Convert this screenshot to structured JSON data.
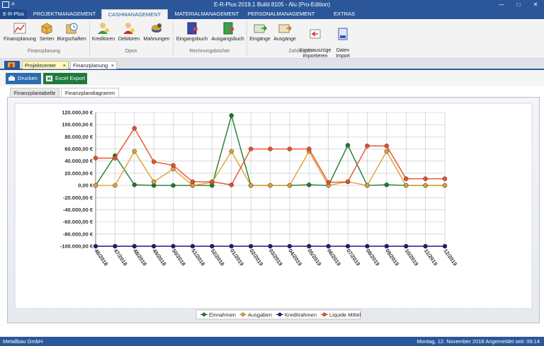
{
  "window": {
    "title": "E-R-Plus 2019.1 Build 8105 -  Alu (Pro-Edition)",
    "quick_access": "≡"
  },
  "ribbon_tabs": [
    {
      "label": "E-R-Plus"
    },
    {
      "label": "PROJEKTMANAGEMENT"
    },
    {
      "label": "CASHMANAGEMENT"
    },
    {
      "label": "MATERIALMANAGEMENT"
    },
    {
      "label": "PERSONALMANAGEMENT"
    },
    {
      "label": "EXTRAS"
    }
  ],
  "ribbon": {
    "buttons": [
      {
        "label": "Finanzplanung",
        "icon": "chart-line-icon"
      },
      {
        "label": "Serien",
        "icon": "box-icon"
      },
      {
        "label": "Bürgschaften",
        "icon": "clock-icon"
      },
      {
        "label": "Kreditoren",
        "icon": "person-icon"
      },
      {
        "label": "Debitoren",
        "icon": "person-red-icon"
      },
      {
        "label": "Mahnungen",
        "icon": "coins-icon"
      },
      {
        "label": "Eingangsbuch",
        "icon": "book-blue-icon"
      },
      {
        "label": "Ausgangsbuch",
        "icon": "book-green-icon"
      },
      {
        "label": "Eingänge",
        "icon": "money-in-icon"
      },
      {
        "label": "Ausgänge",
        "icon": "money-out-icon"
      },
      {
        "label": "Kontoauszüge\nimportieren",
        "icon": "import-icon"
      },
      {
        "label": "Datev\nImport",
        "icon": "datev-icon"
      }
    ],
    "groups": [
      {
        "label": "Finanzplanung"
      },
      {
        "label": "Opos"
      },
      {
        "label": "Rechnungsbücher"
      },
      {
        "label": "Zahlungen"
      }
    ]
  },
  "doc_tabs": [
    {
      "label": "Projektcenter",
      "close": "×"
    },
    {
      "label": "Finanzplanung",
      "close": "×"
    }
  ],
  "toolbar": {
    "print_label": "Drucken",
    "excel_label": "Excel Export",
    "colors": {
      "print": "#2b6cb0",
      "excel": "#1e7b3c"
    }
  },
  "sub_tabs": [
    {
      "label": "Finanzplantabelle"
    },
    {
      "label": "Finanzplandiagramm"
    }
  ],
  "chart_data": {
    "type": "line",
    "categories": [
      "46/2018",
      "47/2018",
      "48/2018",
      "49/2018",
      "50/2018",
      "51/2018",
      "52/2018",
      "01/2019",
      "02/2019",
      "03/2019",
      "04/2019",
      "05/2019",
      "06/2019",
      "07/2019",
      "08/2019",
      "09/2019",
      "10/2019",
      "11/2019",
      "12/2019"
    ],
    "ylim": [
      -100000,
      120000
    ],
    "yticks": [
      "120.000,00 €",
      "100.000,00 €",
      "80.000,00 €",
      "60.000,00 €",
      "40.000,00 €",
      "20.000,00 €",
      "0,00 €",
      "-20.000,00 €",
      "-40.000,00 €",
      "-60.000,00 €",
      "-80.000,00 €",
      "-100.000,00 €"
    ],
    "ytick_values": [
      120000,
      100000,
      80000,
      60000,
      40000,
      20000,
      0,
      -20000,
      -40000,
      -60000,
      -80000,
      -100000
    ],
    "grid": true,
    "legend_position": "bottom",
    "series": [
      {
        "name": "Einnahmen",
        "color": "#1e7b2e",
        "values": [
          0,
          49000,
          1000,
          0,
          0,
          0,
          0,
          115000,
          0,
          0,
          0,
          1000,
          0,
          66000,
          0,
          1000,
          0,
          0,
          0
        ]
      },
      {
        "name": "Ausgaben",
        "color": "#e0a030",
        "values": [
          0,
          0,
          56000,
          6000,
          27000,
          0,
          5000,
          56000,
          0,
          0,
          0,
          56000,
          0,
          6000,
          0,
          56000,
          0,
          0,
          0
        ]
      },
      {
        "name": "Kreditrahmen",
        "color": "#1c1c7c",
        "values": [
          -100000,
          -100000,
          -100000,
          -100000,
          -100000,
          -100000,
          -100000,
          -100000,
          -100000,
          -100000,
          -100000,
          -100000,
          -100000,
          -100000,
          -100000,
          -100000,
          -100000,
          -100000,
          -100000
        ]
      },
      {
        "name": "Liquide Mittel",
        "color": "#e8502a",
        "values": [
          45000,
          45000,
          94000,
          39000,
          33000,
          6000,
          6000,
          1000,
          60000,
          60000,
          60000,
          60000,
          5000,
          6000,
          65000,
          65000,
          11000,
          11000,
          11000
        ]
      }
    ]
  },
  "status": {
    "company": "Metallbau GmbH",
    "right": "Montag, 12. November 2018   Angemeldet seit: 09:14"
  }
}
